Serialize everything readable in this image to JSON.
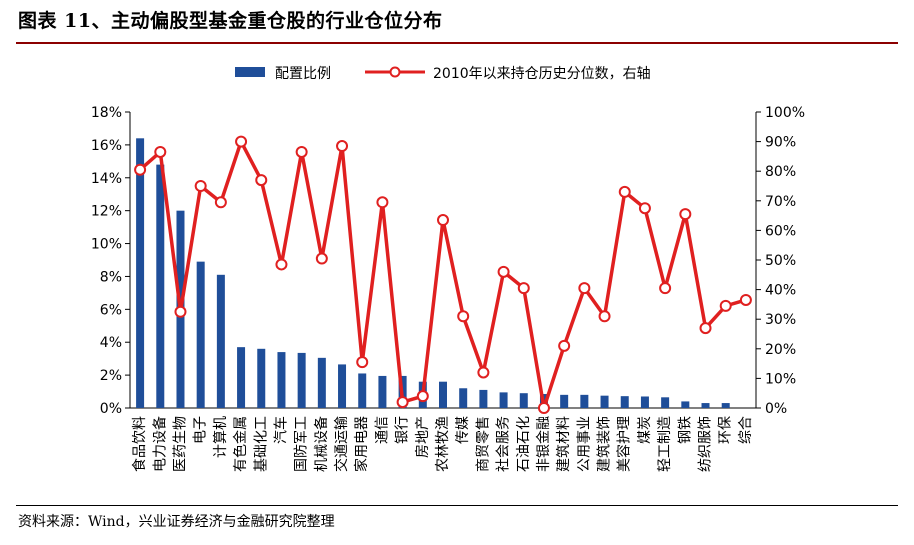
{
  "title": "图表 11、主动偏股型基金重仓股的行业仓位分布",
  "source": "资料来源：Wind，兴业证券经济与金融研究院整理",
  "colors": {
    "bar": "#1f4e99",
    "line": "#e02020",
    "rule": "#8b0000"
  },
  "chart_data": {
    "type": "bar",
    "categories": [
      "食品饮料",
      "电力设备",
      "医药生物",
      "电子",
      "计算机",
      "有色金属",
      "基础化工",
      "汽车",
      "国防军工",
      "机械设备",
      "交通运输",
      "家用电器",
      "通信",
      "银行",
      "房地产",
      "农林牧渔",
      "传媒",
      "商贸零售",
      "社会服务",
      "石油石化",
      "非银金融",
      "建筑材料",
      "公用事业",
      "建筑装饰",
      "美容护理",
      "煤炭",
      "轻工制造",
      "钢铁",
      "纺织服饰",
      "环保",
      "综合"
    ],
    "series": [
      {
        "name": "配置比例",
        "type": "bar",
        "axis": "left",
        "values": [
          16.4,
          14.8,
          12.0,
          8.9,
          8.1,
          3.7,
          3.6,
          3.4,
          3.35,
          3.05,
          2.65,
          2.1,
          1.95,
          1.95,
          1.6,
          1.6,
          1.2,
          1.1,
          0.95,
          0.9,
          0.85,
          0.8,
          0.8,
          0.75,
          0.72,
          0.7,
          0.65,
          0.4,
          0.3,
          0.3,
          0.0
        ]
      },
      {
        "name": "2010年以来持仓历史分位数，右轴",
        "type": "line",
        "axis": "right",
        "values": [
          80.5,
          86.5,
          32.5,
          75,
          69.5,
          90,
          77,
          48.5,
          86.5,
          50.5,
          88.5,
          15.5,
          69.5,
          2,
          4,
          63.5,
          31,
          12,
          46,
          40.5,
          0,
          21,
          40.5,
          31,
          73,
          67.5,
          40.5,
          65.5,
          27,
          34.5,
          36.5
        ]
      }
    ],
    "y_left": {
      "ticks": [
        "0%",
        "2%",
        "4%",
        "6%",
        "8%",
        "10%",
        "12%",
        "14%",
        "16%",
        "18%"
      ],
      "ylim": [
        0,
        18
      ]
    },
    "y_right": {
      "ticks": [
        "0%",
        "10%",
        "20%",
        "30%",
        "40%",
        "50%",
        "60%",
        "70%",
        "80%",
        "90%",
        "100%"
      ],
      "ylim": [
        0,
        100
      ]
    },
    "legend_position": "top",
    "grid": false
  }
}
